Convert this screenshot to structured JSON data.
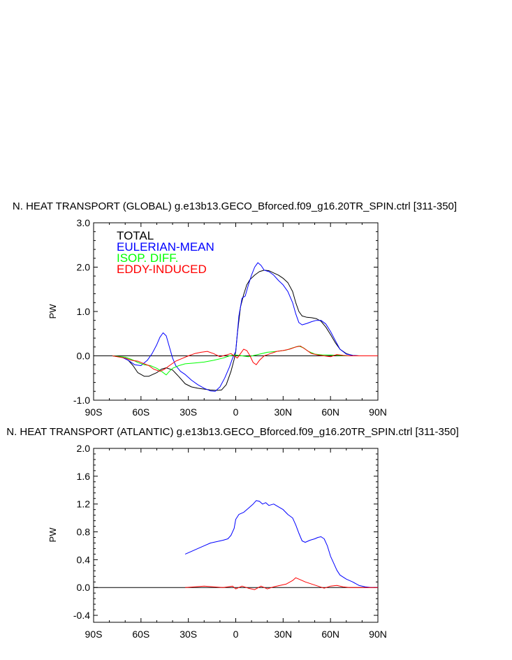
{
  "chart_data": [
    {
      "type": "line",
      "title": "N. HEAT TRANSPORT (GLOBAL) g.e13b13.GECO_Bforced.f09_g16.20TR_SPIN.ctrl [311-350]",
      "ylabel": "PW",
      "xlim": [
        -90,
        90
      ],
      "ylim": [
        -1.0,
        3.0
      ],
      "x_ticks": [
        -90,
        -60,
        -30,
        0,
        30,
        60,
        90
      ],
      "x_tick_labels": [
        "90S",
        "60S",
        "30S",
        "0",
        "30N",
        "60N",
        "90N"
      ],
      "y_ticks": [
        -1.0,
        0.0,
        1.0,
        2.0,
        3.0
      ],
      "y_tick_labels": [
        "-1.0",
        "0.0",
        "1.0",
        "2.0",
        "3.0"
      ],
      "zero_line": true,
      "legend": "top-left",
      "series": [
        {
          "name": "TOTAL",
          "color": "#000000",
          "x": [
            -78,
            -72,
            -68,
            -65,
            -62,
            -58,
            -55,
            -50,
            -47,
            -44,
            -40,
            -36,
            -32,
            -28,
            -24,
            -20,
            -16,
            -12,
            -9,
            -6,
            -3,
            -1,
            0,
            1,
            3,
            5,
            7,
            9,
            12,
            15,
            18,
            21,
            24,
            27,
            30,
            33,
            36,
            38,
            40,
            42,
            45,
            48,
            51,
            54,
            57,
            60,
            63,
            66,
            70,
            74,
            78,
            82,
            86,
            90
          ],
          "y": [
            0,
            -0.03,
            -0.1,
            -0.22,
            -0.38,
            -0.46,
            -0.46,
            -0.38,
            -0.3,
            -0.27,
            -0.32,
            -0.47,
            -0.63,
            -0.7,
            -0.73,
            -0.75,
            -0.77,
            -0.78,
            -0.77,
            -0.65,
            -0.35,
            -0.08,
            0.1,
            0.5,
            1.1,
            1.38,
            1.6,
            1.72,
            1.82,
            1.9,
            1.93,
            1.92,
            1.87,
            1.82,
            1.75,
            1.65,
            1.45,
            1.2,
            1.0,
            0.9,
            0.87,
            0.86,
            0.84,
            0.78,
            0.65,
            0.48,
            0.3,
            0.15,
            0.05,
            0.01,
            0,
            0,
            0,
            0
          ]
        },
        {
          "name": "EULERIAN-MEAN",
          "color": "#0000ff",
          "x": [
            -78,
            -72,
            -68,
            -64,
            -60,
            -56,
            -53,
            -50,
            -48,
            -46,
            -44,
            -42,
            -40,
            -38,
            -35,
            -32,
            -28,
            -24,
            -20,
            -16,
            -13,
            -10,
            -7,
            -4,
            -2,
            0,
            2,
            4,
            6,
            8,
            10,
            12,
            14,
            16,
            18,
            21,
            24,
            27,
            30,
            33,
            36,
            38,
            40,
            42,
            45,
            48,
            51,
            54,
            57,
            60,
            63,
            66,
            70,
            74,
            78,
            82,
            86,
            90
          ],
          "y": [
            0,
            -0.03,
            -0.1,
            -0.2,
            -0.22,
            -0.1,
            0.05,
            0.25,
            0.42,
            0.52,
            0.45,
            0.2,
            -0.05,
            -0.22,
            -0.35,
            -0.42,
            -0.55,
            -0.65,
            -0.73,
            -0.79,
            -0.8,
            -0.7,
            -0.5,
            -0.25,
            -0.05,
            0.1,
            0.9,
            1.3,
            1.35,
            1.6,
            1.82,
            2.0,
            2.1,
            2.04,
            1.93,
            1.9,
            1.82,
            1.7,
            1.6,
            1.45,
            1.2,
            0.95,
            0.75,
            0.7,
            0.73,
            0.77,
            0.8,
            0.8,
            0.72,
            0.55,
            0.35,
            0.15,
            0.04,
            0.01,
            0,
            0,
            0,
            0
          ]
        },
        {
          "name": "ISOP. DIFF.",
          "color": "#00ff00",
          "x": [
            -78,
            -70,
            -66,
            -62,
            -58,
            -54,
            -50,
            -47,
            -44,
            -42,
            -40,
            -36,
            -32,
            -26,
            -20,
            -14,
            -8,
            -4,
            0,
            4,
            8,
            14,
            20,
            26,
            32,
            36,
            40,
            43,
            46,
            50,
            55,
            60,
            65,
            70,
            75,
            80,
            90
          ],
          "y": [
            0,
            -0.03,
            -0.08,
            -0.15,
            -0.2,
            -0.22,
            -0.28,
            -0.35,
            -0.43,
            -0.35,
            -0.28,
            -0.22,
            -0.18,
            -0.16,
            -0.14,
            -0.1,
            -0.05,
            0,
            0.02,
            0,
            -0.02,
            0.03,
            0.08,
            0.1,
            0.13,
            0.18,
            0.22,
            0.18,
            0.1,
            0.04,
            0.02,
            0.02,
            0.01,
            0,
            0,
            0,
            0
          ]
        },
        {
          "name": "EDDY-INDUCED",
          "color": "#ff0000",
          "x": [
            -78,
            -70,
            -66,
            -62,
            -58,
            -55,
            -52,
            -48,
            -45,
            -42,
            -38,
            -34,
            -30,
            -26,
            -22,
            -18,
            -14,
            -10,
            -6,
            -3,
            -1,
            1,
            3,
            5,
            7,
            9,
            11,
            13,
            15,
            18,
            22,
            26,
            30,
            34,
            38,
            41,
            44,
            48,
            52,
            56,
            60,
            64,
            68,
            72,
            78,
            90
          ],
          "y": [
            0,
            -0.05,
            -0.1,
            -0.12,
            -0.18,
            -0.22,
            -0.3,
            -0.35,
            -0.3,
            -0.22,
            -0.12,
            -0.06,
            0,
            0.05,
            0.08,
            0.1,
            0.05,
            -0.02,
            0.02,
            0.05,
            0,
            -0.05,
            0.05,
            0.15,
            0.12,
            0,
            -0.15,
            -0.2,
            -0.1,
            0,
            0.05,
            0.1,
            0.12,
            0.15,
            0.2,
            0.22,
            0.15,
            0.05,
            0.02,
            0,
            -0.02,
            0.03,
            0.01,
            0,
            0,
            0
          ]
        }
      ]
    },
    {
      "type": "line",
      "title": "N. HEAT TRANSPORT (ATLANTIC) g.e13b13.GECO_Bforced.f09_g16.20TR_SPIN.ctrl [311-350]",
      "ylabel": "PW",
      "xlim": [
        -90,
        90
      ],
      "ylim": [
        -0.5,
        2.0
      ],
      "x_ticks": [
        -90,
        -60,
        -30,
        0,
        30,
        60,
        90
      ],
      "x_tick_labels": [
        "90S",
        "60S",
        "30S",
        "0",
        "30N",
        "60N",
        "90N"
      ],
      "y_ticks": [
        -0.4,
        0.0,
        0.4,
        0.8,
        1.2,
        1.6,
        2.0
      ],
      "y_tick_labels": [
        "-0.4",
        "0.0",
        "0.4",
        "0.8",
        "1.2",
        "1.6",
        "2.0"
      ],
      "zero_line": true,
      "series": [
        {
          "name": "EULERIAN-MEAN",
          "color": "#0000ff",
          "x": [
            -32,
            -28,
            -24,
            -20,
            -16,
            -12,
            -8,
            -5,
            -3,
            -1,
            0,
            2,
            5,
            8,
            11,
            13,
            15,
            17,
            19,
            21,
            24,
            27,
            30,
            33,
            36,
            38,
            40,
            42,
            44,
            47,
            50,
            52,
            54,
            56,
            58,
            60,
            62,
            64,
            66,
            68,
            70,
            74,
            78,
            82,
            86,
            90
          ],
          "y": [
            0.48,
            0.52,
            0.56,
            0.6,
            0.64,
            0.66,
            0.68,
            0.7,
            0.75,
            0.85,
            0.98,
            1.05,
            1.08,
            1.14,
            1.2,
            1.25,
            1.24,
            1.2,
            1.22,
            1.18,
            1.2,
            1.16,
            1.12,
            1.05,
            1.0,
            0.9,
            0.78,
            0.67,
            0.65,
            0.68,
            0.7,
            0.72,
            0.73,
            0.7,
            0.6,
            0.45,
            0.35,
            0.25,
            0.18,
            0.15,
            0.12,
            0.08,
            0.03,
            0.01,
            0,
            0
          ]
        },
        {
          "name": "EDDY-INDUCED",
          "color": "#ff0000",
          "x": [
            -32,
            -26,
            -20,
            -14,
            -8,
            -2,
            0,
            4,
            8,
            12,
            16,
            20,
            24,
            28,
            32,
            36,
            38,
            40,
            42,
            44,
            48,
            52,
            56,
            60,
            64,
            68,
            72,
            78,
            90
          ],
          "y": [
            0,
            0.01,
            0.02,
            0.01,
            0.0,
            0.02,
            -0.02,
            0.02,
            -0.01,
            -0.03,
            0.02,
            -0.02,
            0.01,
            0.03,
            0.05,
            0.1,
            0.14,
            0.12,
            0.1,
            0.08,
            0.05,
            0.02,
            -0.01,
            0.02,
            0.03,
            0.01,
            0,
            0,
            0
          ]
        }
      ]
    }
  ]
}
